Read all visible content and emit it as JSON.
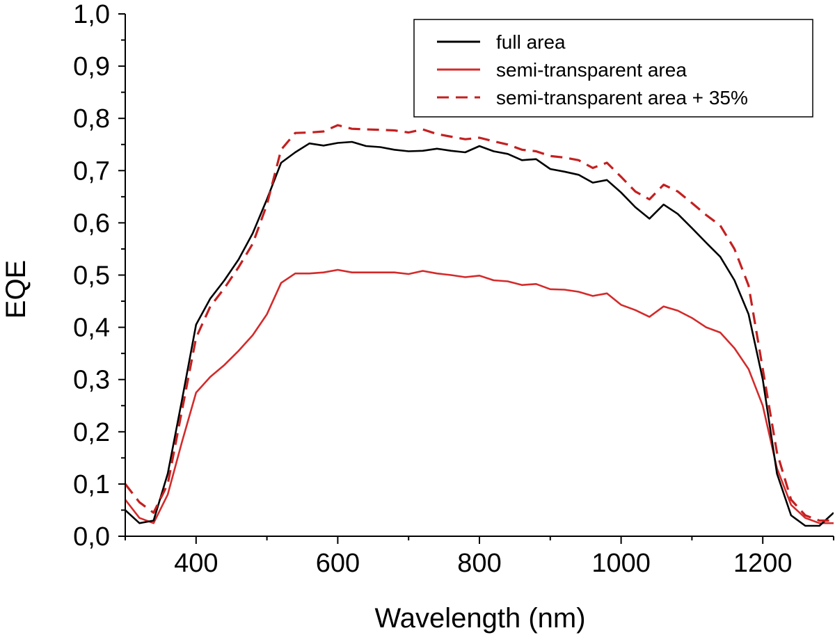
{
  "chart_data": {
    "type": "line",
    "xlabel": "Wavelength (nm)",
    "ylabel": "EQE",
    "xlim": [
      300,
      1300
    ],
    "ylim": [
      0.0,
      1.0
    ],
    "x_ticks": [
      400,
      600,
      800,
      1000,
      1200
    ],
    "x_tick_labels": [
      "400",
      "600",
      "800",
      "1000",
      "1200"
    ],
    "y_ticks": [
      0.0,
      0.1,
      0.2,
      0.3,
      0.4,
      0.5,
      0.6,
      0.7,
      0.8,
      0.9,
      1.0
    ],
    "y_tick_labels": [
      "0,0",
      "0,1",
      "0,2",
      "0,3",
      "0,4",
      "0,5",
      "0,6",
      "0,7",
      "0,8",
      "0,9",
      "1,0"
    ],
    "grid": false,
    "legend_position": "top-right",
    "series": [
      {
        "name": "full area",
        "color": "#000000",
        "style": "solid",
        "x": [
          300,
          320,
          340,
          360,
          380,
          400,
          420,
          440,
          460,
          480,
          500,
          520,
          540,
          560,
          580,
          600,
          620,
          640,
          660,
          680,
          700,
          720,
          740,
          760,
          780,
          800,
          820,
          840,
          860,
          880,
          900,
          920,
          940,
          960,
          980,
          1000,
          1020,
          1040,
          1060,
          1080,
          1100,
          1120,
          1140,
          1160,
          1180,
          1200,
          1220,
          1240,
          1260,
          1280,
          1300
        ],
        "y": [
          0.05,
          0.025,
          0.03,
          0.12,
          0.26,
          0.405,
          0.455,
          0.49,
          0.53,
          0.58,
          0.645,
          0.715,
          0.735,
          0.752,
          0.748,
          0.753,
          0.755,
          0.747,
          0.745,
          0.74,
          0.737,
          0.738,
          0.742,
          0.738,
          0.735,
          0.747,
          0.737,
          0.732,
          0.72,
          0.722,
          0.703,
          0.698,
          0.692,
          0.677,
          0.682,
          0.658,
          0.63,
          0.608,
          0.635,
          0.617,
          0.59,
          0.562,
          0.535,
          0.49,
          0.425,
          0.3,
          0.12,
          0.04,
          0.02,
          0.02,
          0.045
        ]
      },
      {
        "name": "semi-transparent area",
        "color": "#d42a2a",
        "style": "solid",
        "x": [
          300,
          320,
          340,
          360,
          380,
          400,
          420,
          440,
          460,
          480,
          500,
          520,
          540,
          560,
          580,
          600,
          620,
          640,
          660,
          680,
          700,
          720,
          740,
          760,
          780,
          800,
          820,
          840,
          860,
          880,
          900,
          920,
          940,
          960,
          980,
          1000,
          1020,
          1040,
          1060,
          1080,
          1100,
          1120,
          1140,
          1160,
          1180,
          1200,
          1220,
          1240,
          1260,
          1280,
          1300
        ],
        "y": [
          0.07,
          0.035,
          0.025,
          0.08,
          0.18,
          0.275,
          0.305,
          0.328,
          0.355,
          0.385,
          0.425,
          0.485,
          0.503,
          0.503,
          0.505,
          0.51,
          0.505,
          0.505,
          0.505,
          0.505,
          0.502,
          0.508,
          0.503,
          0.5,
          0.496,
          0.499,
          0.49,
          0.488,
          0.481,
          0.483,
          0.473,
          0.472,
          0.468,
          0.46,
          0.465,
          0.443,
          0.433,
          0.42,
          0.44,
          0.432,
          0.418,
          0.4,
          0.39,
          0.36,
          0.32,
          0.25,
          0.13,
          0.06,
          0.035,
          0.025,
          0.025
        ]
      },
      {
        "name": "semi-transparent area + 35%",
        "color": "#c42020",
        "style": "dashed",
        "x": [
          300,
          320,
          340,
          360,
          380,
          400,
          420,
          440,
          460,
          480,
          500,
          520,
          540,
          560,
          580,
          600,
          620,
          640,
          660,
          680,
          700,
          720,
          740,
          760,
          780,
          800,
          820,
          840,
          860,
          880,
          900,
          920,
          940,
          960,
          980,
          1000,
          1020,
          1040,
          1060,
          1080,
          1100,
          1120,
          1140,
          1160,
          1180,
          1200,
          1220,
          1240,
          1260,
          1280,
          1300
        ],
        "y": [
          0.1,
          0.065,
          0.045,
          0.1,
          0.24,
          0.38,
          0.44,
          0.475,
          0.515,
          0.56,
          0.635,
          0.74,
          0.772,
          0.773,
          0.775,
          0.787,
          0.78,
          0.779,
          0.778,
          0.777,
          0.773,
          0.779,
          0.77,
          0.765,
          0.76,
          0.763,
          0.756,
          0.75,
          0.74,
          0.737,
          0.728,
          0.725,
          0.72,
          0.705,
          0.715,
          0.688,
          0.66,
          0.645,
          0.673,
          0.66,
          0.638,
          0.615,
          0.595,
          0.55,
          0.48,
          0.32,
          0.16,
          0.07,
          0.04,
          0.03,
          0.03
        ]
      }
    ]
  }
}
